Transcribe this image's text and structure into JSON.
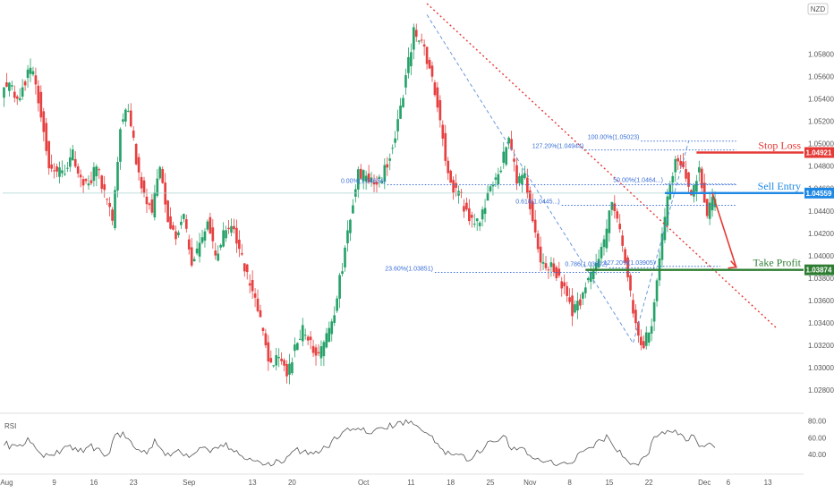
{
  "chart_data": {
    "type": "candlestick",
    "currency_label": "NZD",
    "colors": {
      "up": "#26a269",
      "down": "#e64040",
      "stop": "#e53935",
      "entry": "#1e88e5",
      "profit": "#2e7d32",
      "trend": "#e53935",
      "fib": "#3a6fd8",
      "rsi": "#555555"
    },
    "ylim": [
      1.0265,
      1.0625
    ],
    "price_ticks": [
      "1.05800",
      "1.05600",
      "1.05400",
      "1.05200",
      "1.05000",
      "1.04800",
      "1.04600",
      "1.04400",
      "1.04200",
      "1.04000",
      "1.03800",
      "1.03600",
      "1.03400",
      "1.03200",
      "1.03000",
      "1.02800"
    ],
    "price_tick_values": [
      1.058,
      1.056,
      1.054,
      1.052,
      1.05,
      1.048,
      1.046,
      1.044,
      1.042,
      1.04,
      1.038,
      1.036,
      1.034,
      1.032,
      1.03,
      1.028
    ],
    "x_ticks": [
      {
        "label": "Aug",
        "i": 0
      },
      {
        "label": "9",
        "i": 6
      },
      {
        "label": "16",
        "i": 11
      },
      {
        "label": "23",
        "i": 16
      },
      {
        "label": "Sep",
        "i": 23
      },
      {
        "label": "13",
        "i": 31
      },
      {
        "label": "20",
        "i": 36
      },
      {
        "label": "Oct",
        "i": 45
      },
      {
        "label": "11",
        "i": 51
      },
      {
        "label": "18",
        "i": 56
      },
      {
        "label": "25",
        "i": 61
      },
      {
        "label": "Nov",
        "i": 66
      },
      {
        "label": "8",
        "i": 71
      },
      {
        "label": "15",
        "i": 76
      },
      {
        "label": "22",
        "i": 81
      },
      {
        "label": "Dec",
        "i": 88
      },
      {
        "label": "6",
        "i": 91
      },
      {
        "label": "13",
        "i": 96
      }
    ],
    "x_count": 101,
    "closes": [
      1.0555,
      1.0535,
      1.0558,
      1.0565,
      1.0528,
      1.0482,
      1.0475,
      1.0478,
      1.0492,
      1.047,
      1.0465,
      1.0482,
      1.0455,
      1.043,
      1.0515,
      1.0535,
      1.0482,
      1.0455,
      1.044,
      1.0478,
      1.043,
      1.0418,
      1.0432,
      1.0395,
      1.041,
      1.0432,
      1.04,
      1.0418,
      1.0428,
      1.0405,
      1.038,
      1.0362,
      1.033,
      1.03,
      1.031,
      1.0292,
      1.0318,
      1.0335,
      1.0322,
      1.031,
      1.0325,
      1.035,
      1.0392,
      1.0435,
      1.0472,
      1.047,
      1.0462,
      1.0468,
      1.0492,
      1.052,
      1.056,
      1.0598,
      1.059,
      1.0565,
      1.0535,
      1.0488,
      1.0462,
      1.045,
      1.0432,
      1.0428,
      1.0445,
      1.0465,
      1.0478,
      1.0505,
      1.0465,
      1.047,
      1.043,
      1.0392,
      1.039,
      1.0385,
      1.0372,
      1.0352,
      1.036,
      1.038,
      1.0392,
      1.0412,
      1.0452,
      1.042,
      1.0382,
      1.0335,
      1.032,
      1.034,
      1.0398,
      1.0448,
      1.0482,
      1.0478,
      1.0452,
      1.0478,
      1.0438,
      1.0452
    ],
    "rsi": {
      "label": "RSI",
      "ticks": [
        "80.00",
        "60.00",
        "40.00"
      ],
      "tick_values": [
        80,
        60,
        40
      ],
      "ylim": [
        20,
        85
      ],
      "values": [
        55,
        48,
        52,
        58,
        45,
        40,
        42,
        44,
        50,
        45,
        43,
        50,
        44,
        38,
        62,
        66,
        52,
        46,
        42,
        55,
        44,
        40,
        46,
        38,
        42,
        50,
        42,
        48,
        52,
        44,
        38,
        35,
        30,
        26,
        32,
        30,
        40,
        46,
        42,
        38,
        45,
        52,
        60,
        66,
        72,
        70,
        66,
        68,
        72,
        75,
        78,
        80,
        76,
        68,
        60,
        48,
        42,
        40,
        36,
        35,
        45,
        52,
        55,
        62,
        48,
        50,
        40,
        34,
        34,
        32,
        30,
        28,
        35,
        44,
        48,
        54,
        62,
        50,
        40,
        30,
        28,
        38,
        58,
        65,
        70,
        66,
        56,
        62,
        48,
        52
      ]
    }
  },
  "annotations": {
    "stop_loss": {
      "label": "Stop Loss",
      "price": "1.04921",
      "value": 1.04921
    },
    "sell_entry": {
      "label": "Sell Entry",
      "price": "1.04559",
      "value": 1.04559
    },
    "take_profit": {
      "label": "Take Profit",
      "price": "1.03874",
      "value": 1.03874
    },
    "fib_levels": [
      {
        "label": "127.20%(1.04944)",
        "value": 1.04944
      },
      {
        "label": "100.00%(1.05023)",
        "value": 1.05023
      },
      {
        "label": "0.00%(1.04634)",
        "value": 1.04634
      },
      {
        "label": "50.00%(1.0464...)",
        "value": 1.0464
      },
      {
        "label": "0.618(1.0445...)",
        "value": 1.0445
      },
      {
        "label": "23.60%(1.03851)",
        "value": 1.03851
      },
      {
        "label": "0.786(1.03892)",
        "value": 1.03892
      },
      {
        "label": "127.20%(1.03905)",
        "value": 1.03905
      }
    ]
  }
}
